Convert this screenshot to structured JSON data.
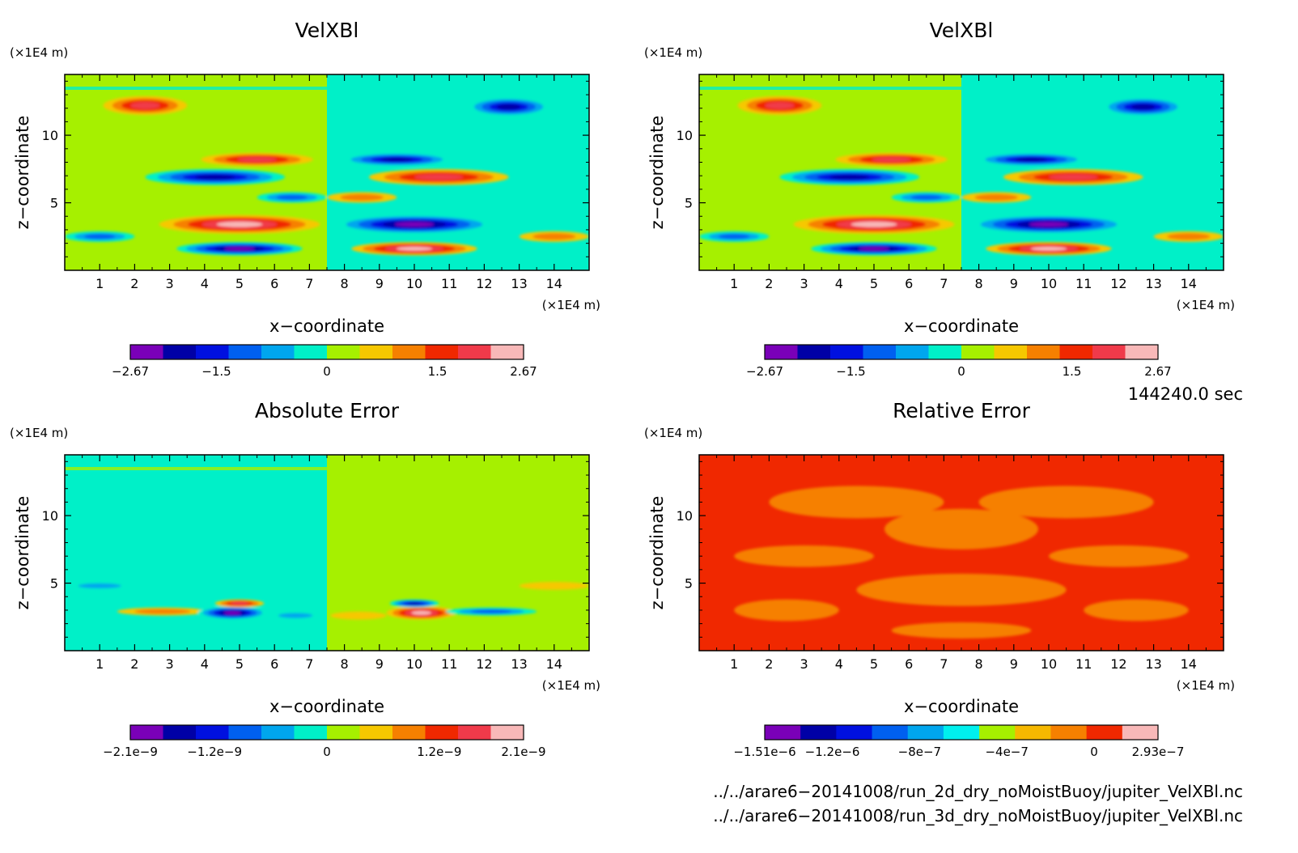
{
  "chart_data": [
    {
      "type": "heatmap",
      "title": "VelXBl",
      "xlabel": "x−coordinate",
      "ylabel": "z−coordinate",
      "x_unit": "(×1E4 m)",
      "y_unit": "(×1E4 m)",
      "xlim": [
        0,
        15
      ],
      "ylim": [
        0,
        14.5
      ],
      "x_ticks": [
        "1",
        "2",
        "3",
        "4",
        "5",
        "6",
        "7",
        "8",
        "9",
        "10",
        "11",
        "12",
        "13",
        "14"
      ],
      "y_ticks": [
        "5",
        "10"
      ],
      "colorbar": {
        "colors": [
          "#7a00b8",
          "#0000a6",
          "#0010e0",
          "#0060f0",
          "#00a6ee",
          "#00f0c8",
          "#a6f000",
          "#f6c800",
          "#f68000",
          "#f02800",
          "#f03a4a",
          "#f8b8b8"
        ],
        "labels": [
          "−2.67",
          "−1.5",
          "0",
          "1.5",
          "2.67"
        ],
        "label_values": [
          -2.67,
          -1.5,
          0,
          1.5,
          2.67
        ],
        "range": [
          -2.67,
          2.67
        ]
      },
      "base_colors": [
        "#a6f000",
        "#00f0c8"
      ],
      "features": [
        {
          "x": 2.3,
          "z": 12.2,
          "rx": 1.2,
          "rz": 0.7,
          "level": 1.9
        },
        {
          "x": 5.5,
          "z": 8.2,
          "rx": 1.6,
          "rz": 0.5,
          "level": 2.2
        },
        {
          "x": 4.3,
          "z": 6.9,
          "rx": 2.0,
          "rz": 0.6,
          "level": -2.0
        },
        {
          "x": 6.5,
          "z": 5.4,
          "rx": 1.0,
          "rz": 0.4,
          "level": -1.1
        },
        {
          "x": 5.0,
          "z": 3.4,
          "rx": 2.3,
          "rz": 0.7,
          "level": 2.3
        },
        {
          "x": 5.0,
          "z": 1.6,
          "rx": 1.8,
          "rz": 0.5,
          "level": -2.3
        },
        {
          "x": 1.0,
          "z": 2.5,
          "rx": 1.0,
          "rz": 0.4,
          "level": -1.0
        },
        {
          "x": 12.7,
          "z": 12.1,
          "rx": 1.2,
          "rz": 0.7,
          "level": -1.9
        },
        {
          "x": 9.5,
          "z": 8.2,
          "rx": 1.6,
          "rz": 0.5,
          "level": -2.2
        },
        {
          "x": 10.7,
          "z": 6.9,
          "rx": 2.0,
          "rz": 0.6,
          "level": 2.0
        },
        {
          "x": 8.5,
          "z": 5.4,
          "rx": 1.0,
          "rz": 0.4,
          "level": 1.1
        },
        {
          "x": 10.0,
          "z": 3.4,
          "rx": 2.3,
          "rz": 0.7,
          "level": -2.3
        },
        {
          "x": 10.0,
          "z": 1.6,
          "rx": 1.8,
          "rz": 0.5,
          "level": 2.5
        },
        {
          "x": 14.0,
          "z": 2.5,
          "rx": 1.0,
          "rz": 0.4,
          "level": 1.0
        }
      ]
    },
    {
      "type": "heatmap",
      "title": "VelXBl",
      "xlabel": "x−coordinate",
      "ylabel": "z−coordinate",
      "x_unit": "(×1E4 m)",
      "y_unit": "(×1E4 m)",
      "xlim": [
        0,
        15
      ],
      "ylim": [
        0,
        14.5
      ],
      "x_ticks": [
        "1",
        "2",
        "3",
        "4",
        "5",
        "6",
        "7",
        "8",
        "9",
        "10",
        "11",
        "12",
        "13",
        "14"
      ],
      "y_ticks": [
        "5",
        "10"
      ],
      "colorbar": {
        "colors": [
          "#7a00b8",
          "#0000a6",
          "#0010e0",
          "#0060f0",
          "#00a6ee",
          "#00f0c8",
          "#a6f000",
          "#f6c800",
          "#f68000",
          "#f02800",
          "#f03a4a",
          "#f8b8b8"
        ],
        "labels": [
          "−2.67",
          "−1.5",
          "0",
          "1.5",
          "2.67"
        ],
        "label_values": [
          -2.67,
          -1.5,
          0,
          1.5,
          2.67
        ],
        "range": [
          -2.67,
          2.67
        ]
      },
      "base_colors": [
        "#a6f000",
        "#00f0c8"
      ],
      "features": [
        {
          "x": 2.3,
          "z": 12.2,
          "rx": 1.2,
          "rz": 0.7,
          "level": 1.9
        },
        {
          "x": 5.5,
          "z": 8.2,
          "rx": 1.6,
          "rz": 0.5,
          "level": 2.2
        },
        {
          "x": 4.3,
          "z": 6.9,
          "rx": 2.0,
          "rz": 0.6,
          "level": -2.0
        },
        {
          "x": 6.5,
          "z": 5.4,
          "rx": 1.0,
          "rz": 0.4,
          "level": -1.1
        },
        {
          "x": 5.0,
          "z": 3.4,
          "rx": 2.3,
          "rz": 0.7,
          "level": 2.3
        },
        {
          "x": 5.0,
          "z": 1.6,
          "rx": 1.8,
          "rz": 0.5,
          "level": -2.3
        },
        {
          "x": 1.0,
          "z": 2.5,
          "rx": 1.0,
          "rz": 0.4,
          "level": -1.0
        },
        {
          "x": 12.7,
          "z": 12.1,
          "rx": 1.2,
          "rz": 0.7,
          "level": -1.9
        },
        {
          "x": 9.5,
          "z": 8.2,
          "rx": 1.6,
          "rz": 0.5,
          "level": -2.2
        },
        {
          "x": 10.7,
          "z": 6.9,
          "rx": 2.0,
          "rz": 0.6,
          "level": 2.0
        },
        {
          "x": 8.5,
          "z": 5.4,
          "rx": 1.0,
          "rz": 0.4,
          "level": 1.1
        },
        {
          "x": 10.0,
          "z": 3.4,
          "rx": 2.3,
          "rz": 0.7,
          "level": -2.3
        },
        {
          "x": 10.0,
          "z": 1.6,
          "rx": 1.8,
          "rz": 0.5,
          "level": 2.5
        },
        {
          "x": 14.0,
          "z": 2.5,
          "rx": 1.0,
          "rz": 0.4,
          "level": 1.0
        }
      ]
    },
    {
      "type": "heatmap",
      "title": "Absolute Error",
      "xlabel": "x−coordinate",
      "ylabel": "z−coordinate",
      "x_unit": "(×1E4 m)",
      "y_unit": "(×1E4 m)",
      "xlim": [
        0,
        15
      ],
      "ylim": [
        0,
        14.5
      ],
      "x_ticks": [
        "1",
        "2",
        "3",
        "4",
        "5",
        "6",
        "7",
        "8",
        "9",
        "10",
        "11",
        "12",
        "13",
        "14"
      ],
      "y_ticks": [
        "5",
        "10"
      ],
      "colorbar": {
        "colors": [
          "#7a00b8",
          "#0000a6",
          "#0010e0",
          "#0060f0",
          "#00a6ee",
          "#00f0c8",
          "#a6f000",
          "#f6c800",
          "#f68000",
          "#f02800",
          "#f03a4a",
          "#f8b8b8"
        ],
        "labels": [
          "−2.1e−9",
          "−1.2e−9",
          "0",
          "1.2e−9",
          "2.1e−9"
        ],
        "label_values": [
          -2.1e-09,
          -1.2e-09,
          0,
          1.2e-09,
          2.1e-09
        ],
        "range": [
          -2.1e-09,
          2.1e-09
        ]
      },
      "base_colors": [
        "#00f0c8",
        "#a6f000"
      ],
      "features": [
        {
          "x": 2.0,
          "z": 12.0,
          "rx": 1.5,
          "rz": 0.6,
          "level": 2e-10
        },
        {
          "x": 1.0,
          "z": 4.8,
          "rx": 1.0,
          "rz": 0.3,
          "level": -5e-10
        },
        {
          "x": 2.8,
          "z": 2.9,
          "rx": 1.3,
          "rz": 0.3,
          "level": 9e-10
        },
        {
          "x": 4.8,
          "z": 2.8,
          "rx": 1.0,
          "rz": 0.5,
          "level": -2e-09
        },
        {
          "x": 5.0,
          "z": 3.5,
          "rx": 0.7,
          "rz": 0.3,
          "level": 1.5e-09
        },
        {
          "x": 6.6,
          "z": 2.6,
          "rx": 0.8,
          "rz": 0.3,
          "level": -6e-10
        },
        {
          "x": 10.2,
          "z": 2.8,
          "rx": 1.0,
          "rz": 0.5,
          "level": 2e-09
        },
        {
          "x": 10.0,
          "z": 3.5,
          "rx": 0.7,
          "rz": 0.3,
          "level": -1.5e-09
        },
        {
          "x": 12.2,
          "z": 2.9,
          "rx": 1.3,
          "rz": 0.3,
          "level": -9e-10
        },
        {
          "x": 8.4,
          "z": 2.6,
          "rx": 0.8,
          "rz": 0.3,
          "level": 6e-10
        },
        {
          "x": 14.0,
          "z": 4.8,
          "rx": 1.0,
          "rz": 0.3,
          "level": 5e-10
        }
      ]
    },
    {
      "type": "heatmap",
      "title": "Relative Error",
      "xlabel": "x−coordinate",
      "ylabel": "z−coordinate",
      "x_unit": "(×1E4 m)",
      "y_unit": "(×1E4 m)",
      "xlim": [
        0,
        15
      ],
      "ylim": [
        0,
        14.5
      ],
      "x_ticks": [
        "1",
        "2",
        "3",
        "4",
        "5",
        "6",
        "7",
        "8",
        "9",
        "10",
        "11",
        "12",
        "13",
        "14"
      ],
      "y_ticks": [
        "5",
        "10"
      ],
      "colorbar": {
        "colors": [
          "#7a00b8",
          "#0000a6",
          "#0010e0",
          "#0060f0",
          "#00a6ee",
          "#00f0ee",
          "#a6f000",
          "#f6b800",
          "#f68000",
          "#f02800",
          "#f8b8b8"
        ],
        "labels": [
          "−1.51e−6",
          "−1.2e−6",
          "−8e−7",
          "−4e−7",
          "0",
          "2.93e−7"
        ],
        "label_values": [
          -1.51e-06,
          -1.2e-06,
          -8e-07,
          -4e-07,
          0,
          2.93e-07
        ],
        "range": [
          -1.51e-06,
          2.93e-07
        ]
      },
      "base_colors": [
        "#f02800",
        "#f02800"
      ],
      "features": [
        {
          "x": 4.5,
          "z": 11.0,
          "rx": 2.5,
          "rz": 1.2,
          "level": -1e-07
        },
        {
          "x": 10.5,
          "z": 11.0,
          "rx": 2.5,
          "rz": 1.2,
          "level": -1e-07
        },
        {
          "x": 7.5,
          "z": 9.0,
          "rx": 2.2,
          "rz": 1.5,
          "level": -1e-07
        },
        {
          "x": 3.0,
          "z": 7.0,
          "rx": 2.0,
          "rz": 0.8,
          "level": -1e-07
        },
        {
          "x": 12.0,
          "z": 7.0,
          "rx": 2.0,
          "rz": 0.8,
          "level": -1e-07
        },
        {
          "x": 7.5,
          "z": 4.5,
          "rx": 3.0,
          "rz": 1.2,
          "level": -1e-07
        },
        {
          "x": 2.5,
          "z": 3.0,
          "rx": 1.5,
          "rz": 0.8,
          "level": -1e-07
        },
        {
          "x": 12.5,
          "z": 3.0,
          "rx": 1.5,
          "rz": 0.8,
          "level": -1e-07
        },
        {
          "x": 7.5,
          "z": 1.5,
          "rx": 2.0,
          "rz": 0.6,
          "level": -1e-07
        }
      ]
    }
  ],
  "annotations": {
    "time": "144240.0 sec",
    "file1": "../../arare6−20141008/run_2d_dry_noMoistBuoy/jupiter_VelXBl.nc",
    "file2": "../../arare6−20141008/run_3d_dry_noMoistBuoy/jupiter_VelXBl.nc"
  }
}
